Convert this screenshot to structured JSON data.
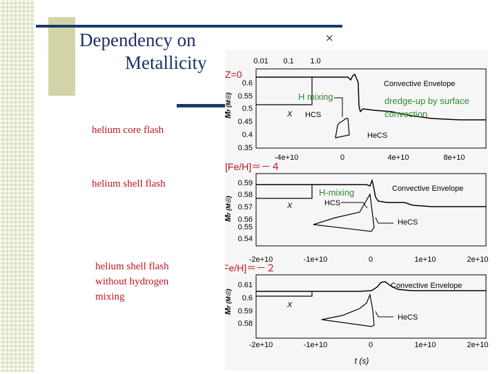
{
  "slide": {
    "title_line1": "Dependency on",
    "title_line2": "Metallicity",
    "close_symbol": "×"
  },
  "labels": [
    "helium core flash",
    "helium shell flash",
    "helium shell flash",
    "without hydrogen",
    "mixing"
  ],
  "figure": {
    "annotations": {
      "z0": "Z=0",
      "h_mixing": "H mixing",
      "dredge_up_line1": "dredge-up by surface",
      "dredge_up_line2": "convection",
      "feh_minus4": "[Fe/H]＝－４",
      "h_mixing2": "H-mixing",
      "feh_minus2": "[Fe/H]＝－２"
    },
    "top_axis_ticks": [
      "0.01",
      "0.1",
      "1.0"
    ],
    "panels": [
      {
        "ytick_labels": [
          "0.6",
          "0.55",
          "0.5",
          "0.45",
          "0.4",
          "0.35"
        ],
        "xtick_labels": [
          "-4e+10",
          "0",
          "4e+10",
          "8e+10"
        ],
        "ylabel_main": "M",
        "ylabel_rest": "r (M☉)",
        "curve_labels": {
          "envelope": "Convective Envelope",
          "hcs": "HCS",
          "hecs": "HeCS",
          "x": "X"
        }
      },
      {
        "ytick_labels": [
          "0.59",
          "0.58",
          "0.57",
          "0.56",
          "0.55",
          "0.54"
        ],
        "xtick_labels": [
          "-2e+10",
          "-1e+10",
          "0",
          "1e+10",
          "2e+10"
        ],
        "ylabel_main": "M",
        "ylabel_rest": "r (M☉)",
        "curve_labels": {
          "envelope": "Convective Envelope",
          "hcs": "HCS",
          "hecs": "HeCS",
          "x": "X"
        }
      },
      {
        "ytick_labels": [
          "0.61",
          "0.6",
          "0.59",
          "0.58"
        ],
        "xtick_labels": [
          "-2e+10",
          "-1e+10",
          "0",
          "1e+10",
          "2e+10"
        ],
        "ylabel_main": "M",
        "ylabel_rest": "r (M☉)",
        "curve_labels": {
          "envelope": "Convective Envelope",
          "hecs": "HeCS",
          "x": "X"
        },
        "xlabel": "t (s)"
      }
    ],
    "colors": {
      "annotation_red": "#c0161e",
      "annotation_green": "#2e8b2e",
      "title_navy": "#1d2f6a"
    }
  }
}
